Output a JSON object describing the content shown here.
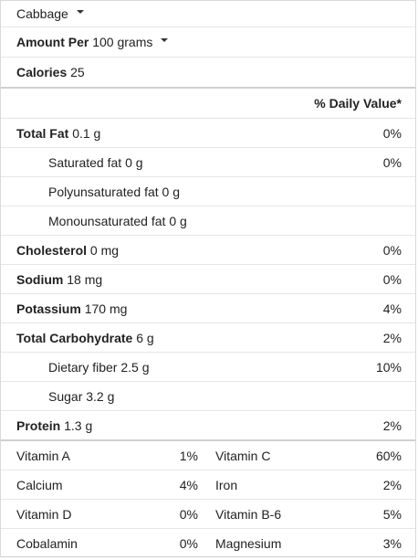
{
  "food": {
    "name": "Cabbage"
  },
  "amount": {
    "label": "Amount Per",
    "serving": "100 grams"
  },
  "calories": {
    "label": "Calories",
    "value": "25"
  },
  "dv_header": "% Daily Value*",
  "nutrients": [
    {
      "label": "Total Fat",
      "amount": "0.1 g",
      "dv": "0%"
    },
    {
      "label": "Saturated fat",
      "amount": "0 g",
      "dv": "0%"
    },
    {
      "label": "Polyunsaturated fat",
      "amount": "0 g",
      "dv": ""
    },
    {
      "label": "Monounsaturated fat",
      "amount": "0 g",
      "dv": ""
    },
    {
      "label": "Cholesterol",
      "amount": "0 mg",
      "dv": "0%"
    },
    {
      "label": "Sodium",
      "amount": "18 mg",
      "dv": "0%"
    },
    {
      "label": "Potassium",
      "amount": "170 mg",
      "dv": "4%"
    },
    {
      "label": "Total Carbohydrate",
      "amount": "6 g",
      "dv": "2%"
    },
    {
      "label": "Dietary fiber",
      "amount": "2.5 g",
      "dv": "10%"
    },
    {
      "label": "Sugar",
      "amount": "3.2 g",
      "dv": ""
    },
    {
      "label": "Protein",
      "amount": "1.3 g",
      "dv": "2%"
    }
  ],
  "vitamins": [
    {
      "left_label": "Vitamin A",
      "left_dv": "1%",
      "right_label": "Vitamin C",
      "right_dv": "60%"
    },
    {
      "left_label": "Calcium",
      "left_dv": "4%",
      "right_label": "Iron",
      "right_dv": "2%"
    },
    {
      "left_label": "Vitamin D",
      "left_dv": "0%",
      "right_label": "Vitamin B-6",
      "right_dv": "5%"
    },
    {
      "left_label": "Cobalamin",
      "left_dv": "0%",
      "right_label": "Magnesium",
      "right_dv": "3%"
    }
  ]
}
